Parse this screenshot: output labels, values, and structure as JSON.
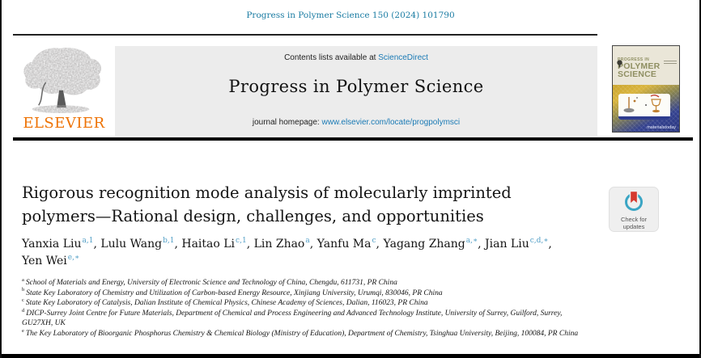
{
  "page": {
    "citation": "Progress in Polymer Science 150 (2024) 101790"
  },
  "banner": {
    "contents_prefix": "Contents lists available at ",
    "sciencedirect": "ScienceDirect",
    "journal_title": "Progress in Polymer Science",
    "homepage_prefix": "journal homepage: ",
    "homepage_url": "www.elsevier.com/locate/progpolymsci",
    "elsevier_logo_text": "ELSEVIER"
  },
  "cover": {
    "line1": "PROGRESS IN",
    "line2": "POLYMER",
    "line3": "SCIENCE",
    "brand": "materialstoday"
  },
  "article": {
    "title": "Rigorous recognition mode analysis of molecularly imprinted polymers—Rational design, challenges, and opportunities"
  },
  "authors": [
    {
      "name": "Yanxia Liu",
      "sup": "a,1"
    },
    {
      "name": "Lulu Wang",
      "sup": "b,1"
    },
    {
      "name": "Haitao Li",
      "sup": "c,1"
    },
    {
      "name": "Lin Zhao",
      "sup": "a"
    },
    {
      "name": "Yanfu Ma",
      "sup": "c"
    },
    {
      "name": "Yagang Zhang",
      "sup": "a,∗"
    },
    {
      "name": "Jian Liu",
      "sup": "c,d,∗"
    },
    {
      "name": "Yen Wei",
      "sup": "e,∗"
    }
  ],
  "affiliations": [
    {
      "label": "a",
      "text": "School of Materials and Energy, University of Electronic Science and Technology of China, Chengdu, 611731, PR China"
    },
    {
      "label": "b",
      "text": "State Key Laboratory of Chemistry and Utilization of Carbon-based Energy Resource, Xinjiang University, Urumqi, 830046, PR China"
    },
    {
      "label": "c",
      "text": "State Key Laboratory of Catalysis, Dalian Institute of Chemical Physics, Chinese Academy of Sciences, Dalian, 116023, PR China"
    },
    {
      "label": "d",
      "text": "DICP-Surrey Joint Centre for Future Materials, Department of Chemical and Process Engineering and Advanced Technology Institute, University of Surrey, Guilford, Surrey, GU27XH, UK"
    },
    {
      "label": "e",
      "text": "The Key Laboratory of Bioorganic Phosphorus Chemistry & Chemical Biology (Ministry of Education), Department of Chemistry, Tsinghua University, Beijing, 100084, PR China"
    }
  ],
  "badge": {
    "line1": "Check for",
    "line2": "updates"
  },
  "icons": {
    "elsevier_tree": "elsevier-tree-icon",
    "check_updates": "bookmark-ring-icon"
  },
  "colors": {
    "citation_teal": "#1b7ca3",
    "link_blue": "#1a7ab5",
    "elsevier_orange": "#ee7203",
    "superscript_blue": "#529fc6",
    "banner_gray": "#ececec",
    "badge_ring_teal": "#3aa5c4",
    "badge_bookmark_red": "#d5382e",
    "cover_cream": "#eae6d8",
    "cover_olive": "#8f8f62",
    "cover_gold": "#cda62f",
    "cover_blue": "#2e3c8e"
  }
}
